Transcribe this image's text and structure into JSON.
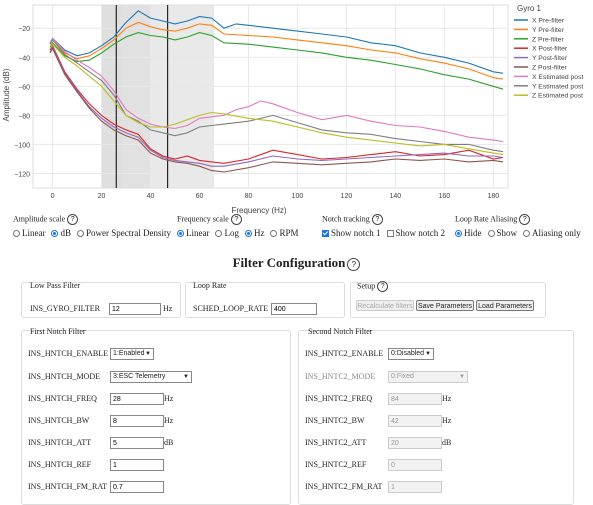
{
  "chart_data": {
    "type": "line",
    "title": "",
    "xlabel": "Frequency (Hz)",
    "ylabel": "Amplitude (dB)",
    "xlim": [
      -8,
      186
    ],
    "ylim": [
      -130,
      -4
    ],
    "xticks": [
      0,
      20,
      40,
      60,
      80,
      100,
      120,
      140,
      160,
      180
    ],
    "yticks": [
      -20,
      -40,
      -60,
      -80,
      -100,
      -120
    ],
    "grid": true,
    "legend_position": "right",
    "legend_title": "Gyro 1",
    "shaded_bands": [
      [
        20,
        40
      ],
      [
        28,
        66
      ]
    ],
    "vlines": [
      26,
      47
    ],
    "series": [
      {
        "name": "X Pre-filter",
        "color": "#1f77b4",
        "x": [
          -1,
          0,
          5,
          10,
          15,
          20,
          25,
          30,
          35,
          40,
          45,
          50,
          55,
          60,
          65,
          70,
          75,
          80,
          90,
          100,
          110,
          120,
          130,
          140,
          150,
          160,
          170,
          180,
          184
        ],
        "y": [
          -30,
          -27,
          -35,
          -39,
          -37,
          -32,
          -26,
          -16,
          -8,
          -13,
          -15,
          -17,
          -15,
          -12,
          -13,
          -20,
          -17,
          -18,
          -20,
          -22,
          -24,
          -26,
          -30,
          -32,
          -37,
          -40,
          -44,
          -50,
          -51
        ]
      },
      {
        "name": "Y Pre-filter",
        "color": "#ff7f0e",
        "x": [
          -1,
          0,
          5,
          10,
          15,
          20,
          25,
          30,
          35,
          40,
          45,
          50,
          55,
          60,
          65,
          70,
          80,
          90,
          100,
          110,
          120,
          130,
          140,
          150,
          160,
          170,
          180,
          184
        ],
        "y": [
          -31,
          -28,
          -37,
          -41,
          -39,
          -34,
          -28,
          -20,
          -16,
          -19,
          -21,
          -22,
          -20,
          -17,
          -18,
          -24,
          -25,
          -26,
          -28,
          -30,
          -32,
          -35,
          -37,
          -41,
          -44,
          -48,
          -54,
          -55
        ]
      },
      {
        "name": "Z Pre-filter",
        "color": "#2ca02c",
        "x": [
          -1,
          0,
          5,
          10,
          15,
          20,
          25,
          30,
          35,
          40,
          45,
          50,
          55,
          60,
          65,
          70,
          80,
          90,
          100,
          110,
          120,
          130,
          140,
          150,
          160,
          170,
          180,
          184
        ],
        "y": [
          -33,
          -30,
          -39,
          -43,
          -42,
          -37,
          -31,
          -26,
          -23,
          -25,
          -26,
          -28,
          -26,
          -23,
          -25,
          -30,
          -31,
          -33,
          -35,
          -37,
          -40,
          -42,
          -45,
          -48,
          -52,
          -55,
          -60,
          -62
        ]
      },
      {
        "name": "X Post-filter",
        "color": "#d62728",
        "x": [
          -1,
          0,
          5,
          10,
          15,
          20,
          25,
          30,
          35,
          40,
          45,
          50,
          55,
          60,
          65,
          70,
          80,
          90,
          100,
          110,
          120,
          130,
          140,
          150,
          160,
          170,
          180,
          184
        ],
        "y": [
          -35,
          -32,
          -50,
          -62,
          -72,
          -80,
          -86,
          -90,
          -93,
          -103,
          -108,
          -110,
          -108,
          -111,
          -112,
          -113,
          -110,
          -104,
          -107,
          -110,
          -109,
          -107,
          -105,
          -108,
          -107,
          -104,
          -110,
          -109
        ]
      },
      {
        "name": "Y Post-filter",
        "color": "#9467bd",
        "x": [
          -1,
          0,
          5,
          10,
          15,
          20,
          25,
          30,
          35,
          40,
          45,
          50,
          55,
          60,
          65,
          70,
          80,
          90,
          100,
          110,
          120,
          130,
          140,
          150,
          160,
          170,
          180,
          184
        ],
        "y": [
          -36,
          -33,
          -51,
          -63,
          -74,
          -82,
          -88,
          -92,
          -95,
          -104,
          -109,
          -111,
          -112,
          -113,
          -115,
          -115,
          -112,
          -108,
          -110,
          -111,
          -110,
          -109,
          -108,
          -107,
          -106,
          -108,
          -108,
          -109
        ]
      },
      {
        "name": "Z Post-filter",
        "color": "#8c564b",
        "x": [
          -1,
          0,
          5,
          10,
          15,
          20,
          25,
          30,
          35,
          40,
          45,
          50,
          55,
          60,
          65,
          70,
          80,
          90,
          100,
          110,
          120,
          130,
          140,
          150,
          160,
          170,
          180,
          184
        ],
        "y": [
          -37,
          -34,
          -52,
          -64,
          -75,
          -84,
          -90,
          -94,
          -97,
          -106,
          -110,
          -112,
          -113,
          -115,
          -118,
          -119,
          -116,
          -112,
          -113,
          -114,
          -113,
          -112,
          -110,
          -111,
          -110,
          -112,
          -111,
          -112
        ]
      },
      {
        "name": "X Estimated post",
        "color": "#e377c2",
        "x": [
          -1,
          0,
          5,
          10,
          15,
          20,
          25,
          30,
          35,
          40,
          45,
          50,
          55,
          60,
          65,
          70,
          75,
          80,
          85,
          90,
          100,
          110,
          120,
          130,
          140,
          150,
          160,
          170,
          180,
          184
        ],
        "y": [
          -30,
          -27,
          -36,
          -42,
          -47,
          -53,
          -63,
          -76,
          -82,
          -86,
          -88,
          -89,
          -87,
          -82,
          -81,
          -80,
          -76,
          -74,
          -70,
          -72,
          -78,
          -83,
          -80,
          -84,
          -87,
          -88,
          -91,
          -95,
          -97,
          -98
        ]
      },
      {
        "name": "Y Estimated post",
        "color": "#7f7f7f",
        "x": [
          -1,
          0,
          5,
          10,
          15,
          20,
          25,
          30,
          35,
          40,
          45,
          50,
          55,
          60,
          65,
          70,
          80,
          90,
          100,
          110,
          120,
          130,
          140,
          150,
          160,
          170,
          180,
          184
        ],
        "y": [
          -31,
          -28,
          -38,
          -44,
          -50,
          -56,
          -66,
          -80,
          -84,
          -90,
          -92,
          -94,
          -92,
          -88,
          -87,
          -86,
          -84,
          -80,
          -85,
          -90,
          -92,
          -93,
          -96,
          -98,
          -100,
          -100,
          -104,
          -105
        ]
      },
      {
        "name": "Z Estimated post",
        "color": "#bcbd22",
        "x": [
          -1,
          0,
          5,
          10,
          15,
          20,
          25,
          30,
          35,
          40,
          45,
          50,
          55,
          60,
          65,
          70,
          80,
          90,
          100,
          110,
          120,
          130,
          140,
          150,
          160,
          170,
          180,
          184
        ],
        "y": [
          -34,
          -31,
          -40,
          -46,
          -53,
          -60,
          -70,
          -80,
          -85,
          -88,
          -88,
          -86,
          -83,
          -80,
          -78,
          -79,
          -82,
          -84,
          -88,
          -92,
          -95,
          -97,
          -99,
          -101,
          -100,
          -103,
          -106,
          -107
        ]
      }
    ]
  },
  "controls": {
    "amplitude_label": "Amplitude scale",
    "amplitude_options": [
      "Linear",
      "dB",
      "Power Spectral Density"
    ],
    "frequency_label": "Frequency scale",
    "frequency_options": [
      "Linear",
      "Log",
      "Hz",
      "RPM"
    ],
    "notch_label": "Notch tracking",
    "notch_options": [
      "Show notch 1",
      "Show notch 2"
    ],
    "aliasing_label": "Loop Rate Aliasing",
    "aliasing_options": [
      "Hide",
      "Show",
      "Aliasing only"
    ],
    "help_glyph": "?"
  },
  "filter_config": {
    "heading": "Filter Configuration",
    "low_pass": {
      "title": "Low Pass Filter",
      "param": "INS_GYRO_FILTER",
      "value": "12",
      "unit": "Hz"
    },
    "loop_rate": {
      "title": "Loop Rate",
      "param": "SCHED_LOOP_RATE",
      "value": "400"
    },
    "setup": {
      "title": "Setup",
      "recalc": "Recalculate filters",
      "save": "Save Parameters",
      "load": "Load Parameters"
    },
    "notch1": {
      "title": "First Notch Filter",
      "enable": {
        "label": "INS_HNTCH_ENABLE",
        "value": "1:Enabled"
      },
      "mode": {
        "label": "INS_HNTCH_MODE",
        "value": "3:ESC Telemetry"
      },
      "freq": {
        "label": "INS_HNTCH_FREQ",
        "value": "28",
        "unit": "Hz"
      },
      "bw": {
        "label": "INS_HNTCH_BW",
        "value": "8",
        "unit": "Hz"
      },
      "att": {
        "label": "INS_HNTCH_ATT",
        "value": "5",
        "unit": "dB"
      },
      "ref": {
        "label": "INS_HNTCH_REF",
        "value": "1"
      },
      "fmrat": {
        "label": "INS_HNTCH_FM_RAT",
        "value": "0.7"
      }
    },
    "notch2": {
      "title": "Second Notch Filter",
      "enable": {
        "label": "INS_HNTC2_ENABLE",
        "value": "0:Disabled"
      },
      "mode": {
        "label": "INS_HNTC2_MODE",
        "value": "0:Fixed"
      },
      "freq": {
        "label": "INS_HNTC2_FREQ",
        "value": "84",
        "unit": "Hz"
      },
      "bw": {
        "label": "INS_HNTC2_BW",
        "value": "42",
        "unit": "Hz"
      },
      "att": {
        "label": "INS_HNTC2_ATT",
        "value": "20",
        "unit": "dB"
      },
      "ref": {
        "label": "INS_HNTC2_REF",
        "value": "0"
      },
      "fmrat": {
        "label": "INS_HNTC2_FM_RAT",
        "value": "1"
      }
    }
  }
}
